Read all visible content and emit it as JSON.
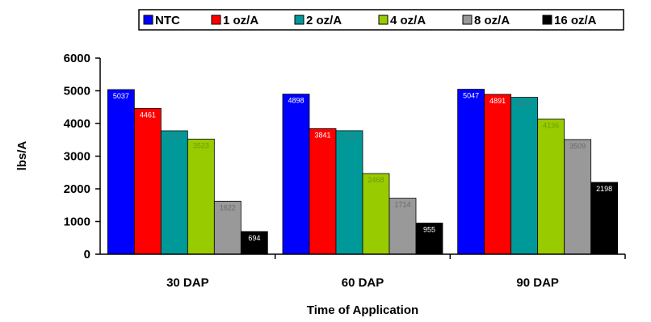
{
  "chart_data": {
    "type": "bar",
    "categories": [
      "30 DAP",
      "60 DAP",
      "90 DAP"
    ],
    "series": [
      {
        "name": "NTC",
        "values": [
          5037,
          4898,
          5047
        ],
        "color": "#0000FF",
        "label_color": "#FFFFFF"
      },
      {
        "name": "1 oz/A",
        "values": [
          4461,
          3841,
          4891
        ],
        "color": "#FF0000",
        "label_color": "#FFFFFF"
      },
      {
        "name": "2 oz/A",
        "values": [
          3777,
          3780,
          4800
        ],
        "color": "#009999",
        "label_color": "#3C7F7F"
      },
      {
        "name": "4 oz/A",
        "values": [
          3523,
          2468,
          4136
        ],
        "color": "#99CC00",
        "label_color": "#6E9900"
      },
      {
        "name": "8 oz/A",
        "values": [
          1622,
          1714,
          3509
        ],
        "color": "#999999",
        "label_color": "#6A6A6A"
      },
      {
        "name": "16 oz/A",
        "values": [
          694,
          955,
          2198
        ],
        "color": "#000000",
        "label_color": "#FFFFFF"
      }
    ],
    "value_labels": [
      [
        "5037",
        "4898",
        "5047"
      ],
      [
        "4461",
        "3841",
        "4891"
      ],
      [
        "3777",
        "3780",
        "4800"
      ],
      [
        "3523",
        "2468",
        "4136"
      ],
      [
        "1622",
        "1714",
        "3509"
      ],
      [
        "694",
        "955",
        "2198"
      ]
    ],
    "ylabel": "lbs/A",
    "xlabel": "Time of Application",
    "ylim": [
      0,
      6000
    ],
    "yticks": [
      0,
      1000,
      2000,
      3000,
      4000,
      5000,
      6000
    ],
    "ytick_labels": [
      "0",
      "1000",
      "2000",
      "3000",
      "4000",
      "5000",
      "6000"
    ],
    "grid": false,
    "legend_position": "top"
  }
}
